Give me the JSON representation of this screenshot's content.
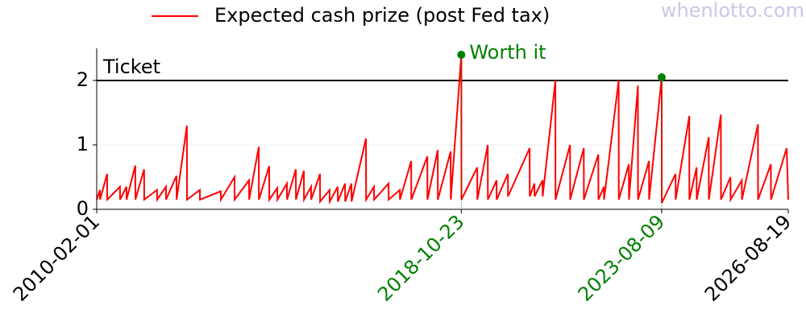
{
  "chart_data": {
    "type": "line",
    "watermark": "whenlotto.com",
    "x": [
      "2010-02-01",
      "2010-03-01",
      "2010-03-02",
      "2010-05-03",
      "2010-05-04",
      "2010-08-23",
      "2010-08-24",
      "2010-10-19",
      "2010-10-20",
      "2011-01-04",
      "2011-01-05",
      "2011-03-22",
      "2011-03-23",
      "2011-07-13",
      "2011-07-14",
      "2011-09-29",
      "2011-09-30",
      "2011-12-30",
      "2011-12-31",
      "2012-03-30",
      "2012-03-31",
      "2012-07-21",
      "2012-07-22",
      "2013-01-20",
      "2013-01-21",
      "2013-05-20",
      "2013-05-21",
      "2013-09-24",
      "2013-09-25",
      "2013-12-18",
      "2013-12-19",
      "2014-03-19",
      "2014-03-20",
      "2014-05-29",
      "2014-05-30",
      "2014-08-21",
      "2014-08-22",
      "2014-11-07",
      "2014-11-08",
      "2015-01-16",
      "2015-01-17",
      "2015-03-20",
      "2015-03-21",
      "2015-06-06",
      "2015-06-07",
      "2015-08-29",
      "2015-08-30",
      "2015-11-08",
      "2015-11-09",
      "2016-01-11",
      "2016-01-12",
      "2016-03-07",
      "2016-03-08",
      "2016-07-12",
      "2016-07-13",
      "2016-09-20",
      "2016-09-21",
      "2017-01-25",
      "2017-01-26",
      "2017-05-04",
      "2017-05-05",
      "2017-08-11",
      "2017-08-12",
      "2017-12-30",
      "2017-12-31",
      "2018-03-31",
      "2018-04-01",
      "2018-07-22",
      "2018-07-23",
      "2018-10-23",
      "2018-10-24",
      "2019-03-11",
      "2019-03-12",
      "2019-06-11",
      "2019-06-12",
      "2019-08-27",
      "2019-08-28",
      "2019-12-04",
      "2019-12-05",
      "2020-06-11",
      "2020-06-12",
      "2020-07-23",
      "2020-07-24",
      "2020-10-02",
      "2020-10-03",
      "2021-01-22",
      "2021-01-23",
      "2021-05-30",
      "2021-05-31",
      "2021-09-27",
      "2021-09-28",
      "2022-02-01",
      "2022-02-02",
      "2022-03-22",
      "2022-03-23",
      "2022-07-29",
      "2022-07-30",
      "2022-10-26",
      "2022-10-27",
      "2023-01-13",
      "2023-01-14",
      "2023-04-20",
      "2023-04-21",
      "2023-08-09",
      "2023-08-10",
      "2023-12-08",
      "2023-12-09",
      "2024-04-06",
      "2024-04-07",
      "2024-06-09",
      "2024-06-10",
      "2024-09-23",
      "2024-09-24",
      "2025-01-07",
      "2025-01-08",
      "2025-04-01",
      "2025-04-02",
      "2025-07-09",
      "2025-07-10",
      "2025-11-27",
      "2025-11-28",
      "2026-03-20",
      "2026-03-21",
      "2026-08-05",
      "2026-08-19"
    ],
    "series": [
      {
        "name": "Expected cash prize (post Fed tax)",
        "color": "#ff0000",
        "values": [
          0.15,
          0.3,
          0.15,
          0.55,
          0.15,
          0.35,
          0.15,
          0.35,
          0.15,
          0.68,
          0.15,
          0.62,
          0.15,
          0.3,
          0.15,
          0.35,
          0.15,
          0.52,
          0.15,
          1.3,
          0.15,
          0.3,
          0.15,
          0.28,
          0.15,
          0.5,
          0.15,
          0.45,
          0.15,
          0.97,
          0.15,
          0.67,
          0.15,
          0.33,
          0.15,
          0.4,
          0.15,
          0.62,
          0.15,
          0.6,
          0.15,
          0.35,
          0.15,
          0.55,
          0.12,
          0.3,
          0.12,
          0.35,
          0.12,
          0.4,
          0.12,
          0.4,
          0.12,
          1.1,
          0.15,
          0.35,
          0.15,
          0.4,
          0.15,
          0.3,
          0.15,
          0.75,
          0.15,
          0.82,
          0.15,
          0.92,
          0.15,
          0.9,
          0.15,
          2.4,
          0.15,
          0.65,
          0.15,
          1.0,
          0.15,
          0.45,
          0.15,
          0.55,
          0.2,
          0.95,
          0.2,
          0.4,
          0.2,
          0.45,
          0.2,
          2.0,
          0.15,
          1.0,
          0.15,
          0.95,
          0.15,
          0.85,
          0.15,
          0.35,
          0.15,
          2.0,
          0.15,
          0.7,
          0.15,
          1.92,
          0.15,
          0.75,
          0.15,
          2.05,
          0.1,
          0.55,
          0.15,
          1.45,
          0.15,
          0.65,
          0.15,
          1.12,
          0.15,
          1.47,
          0.15,
          0.5,
          0.15,
          0.45,
          0.15,
          1.32,
          0.15,
          0.7,
          0.15,
          0.95,
          0.15
        ]
      }
    ],
    "reference_line": {
      "label": "Ticket",
      "value": 2,
      "color": "#000000"
    },
    "highlights": [
      {
        "x": "2018-10-23",
        "y": 2.4,
        "label": "Worth it"
      },
      {
        "x": "2023-08-09",
        "y": 2.05
      }
    ],
    "highlight_color": "#008000",
    "xlim": [
      "2010-02-01",
      "2026-08-19"
    ],
    "xticks": [
      "2010-02-01",
      "2018-10-23",
      "2023-08-09",
      "2026-08-19"
    ],
    "ylim": [
      0,
      2.5
    ],
    "yticks": [
      0,
      1,
      2
    ],
    "grid": true
  }
}
